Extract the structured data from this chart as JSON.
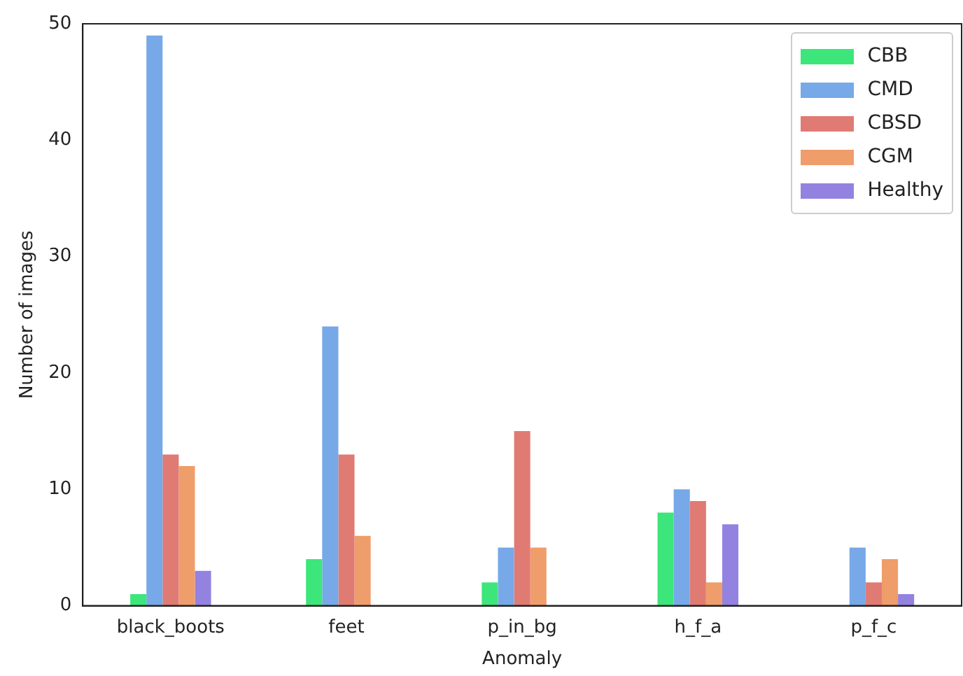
{
  "chart_data": {
    "type": "bar",
    "xlabel": "Anomaly",
    "ylabel": "Number of images",
    "categories": [
      "black_boots",
      "feet",
      "p_in_bg",
      "h_f_a",
      "p_f_c"
    ],
    "series": [
      {
        "name": "CBB",
        "color": "#3de67a",
        "values": [
          1,
          4,
          2,
          8,
          0
        ]
      },
      {
        "name": "CMD",
        "color": "#77a8e8",
        "values": [
          49,
          24,
          5,
          10,
          5
        ]
      },
      {
        "name": "CBSD",
        "color": "#e07b74",
        "values": [
          13,
          13,
          15,
          9,
          2
        ]
      },
      {
        "name": "CGM",
        "color": "#ef9d6b",
        "values": [
          12,
          6,
          5,
          2,
          4
        ]
      },
      {
        "name": "Healthy",
        "color": "#9382e0",
        "values": [
          3,
          0,
          0,
          7,
          1
        ]
      }
    ],
    "ylim": [
      0,
      50
    ],
    "yticks": [
      0,
      10,
      20,
      30,
      40,
      50
    ],
    "grid": false,
    "legend": "top right"
  }
}
